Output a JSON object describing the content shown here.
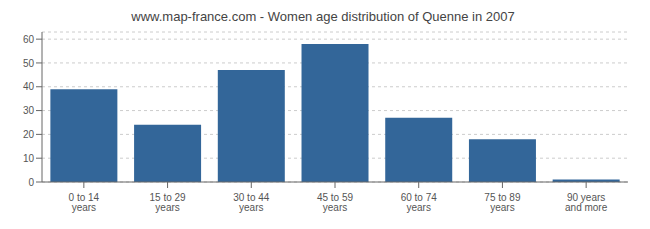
{
  "chart_data": {
    "type": "bar",
    "title": "www.map-france.com - Women age distribution of Quenne in 2007",
    "categories": [
      "0 to 14 years",
      "15 to 29 years",
      "30 to 44 years",
      "45 to 59 years",
      "60 to 74 years",
      "75 to 89 years",
      "90 years and more"
    ],
    "values": [
      39,
      24,
      47,
      58,
      27,
      18,
      1
    ],
    "color": "#336699",
    "ylim": [
      0,
      63
    ],
    "yticks": [
      0,
      10,
      20,
      30,
      40,
      50,
      60
    ],
    "grid": true
  }
}
